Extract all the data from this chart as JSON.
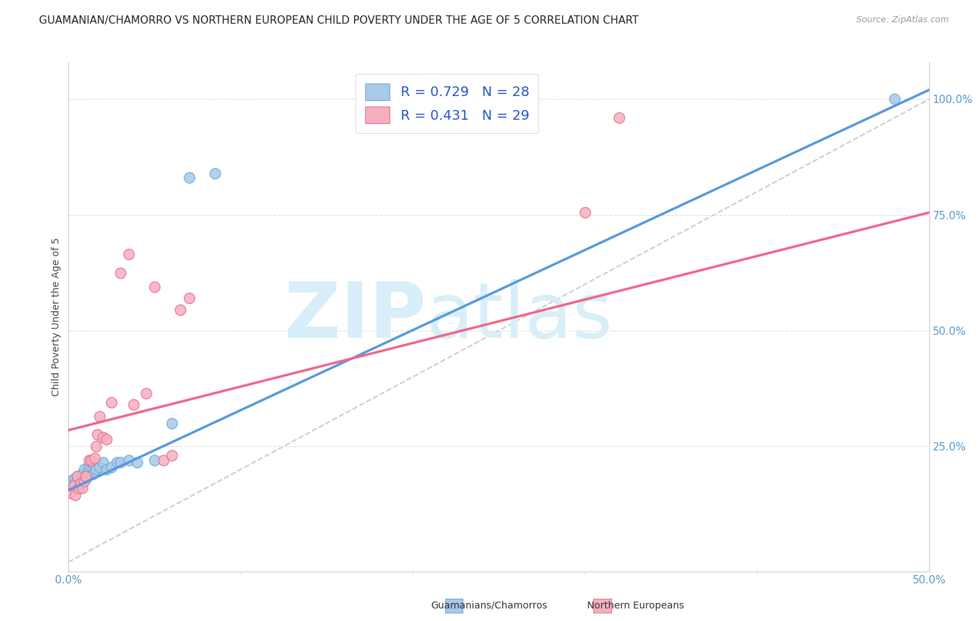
{
  "title": "GUAMANIAN/CHAMORRO VS NORTHERN EUROPEAN CHILD POVERTY UNDER THE AGE OF 5 CORRELATION CHART",
  "source": "Source: ZipAtlas.com",
  "ylabel": "Child Poverty Under the Age of 5",
  "xlim": [
    0.0,
    0.5
  ],
  "ylim": [
    -0.02,
    1.08
  ],
  "xticks": [
    0.0,
    0.1,
    0.2,
    0.3,
    0.4,
    0.5
  ],
  "yticks": [
    0.25,
    0.5,
    0.75,
    1.0
  ],
  "xticklabels_show": [
    "0.0%",
    "50.0%"
  ],
  "xticklabels_pos": [
    0.0,
    0.5
  ],
  "yticklabels": [
    "25.0%",
    "50.0%",
    "75.0%",
    "100.0%"
  ],
  "blue_color": "#aac8e8",
  "pink_color": "#f5b0c0",
  "blue_edge_color": "#6aaad8",
  "pink_edge_color": "#e87090",
  "blue_line_color": "#5599dd",
  "pink_line_color": "#ee6688",
  "blue_label": "Guamanians/Chamorros",
  "pink_label": "Northern Europeans",
  "blue_R": "0.729",
  "blue_N": "28",
  "pink_R": "0.431",
  "pink_N": "29",
  "legend_text_color": "#2255cc",
  "watermark_zip": "ZIP",
  "watermark_atlas": "atlas",
  "watermark_color": "#d8eef8",
  "blue_scatter_x": [
    0.001,
    0.003,
    0.004,
    0.005,
    0.006,
    0.007,
    0.008,
    0.009,
    0.01,
    0.011,
    0.012,
    0.013,
    0.014,
    0.015,
    0.016,
    0.018,
    0.02,
    0.022,
    0.025,
    0.028,
    0.03,
    0.035,
    0.04,
    0.05,
    0.06,
    0.07,
    0.085,
    0.48
  ],
  "blue_scatter_y": [
    0.175,
    0.18,
    0.17,
    0.185,
    0.165,
    0.175,
    0.19,
    0.2,
    0.18,
    0.195,
    0.21,
    0.215,
    0.19,
    0.195,
    0.2,
    0.205,
    0.215,
    0.2,
    0.205,
    0.215,
    0.215,
    0.22,
    0.215,
    0.22,
    0.3,
    0.83,
    0.84,
    1.0
  ],
  "pink_scatter_x": [
    0.001,
    0.003,
    0.004,
    0.005,
    0.006,
    0.007,
    0.008,
    0.009,
    0.01,
    0.012,
    0.013,
    0.015,
    0.016,
    0.017,
    0.018,
    0.02,
    0.022,
    0.025,
    0.03,
    0.035,
    0.038,
    0.045,
    0.05,
    0.055,
    0.06,
    0.065,
    0.07,
    0.3,
    0.32
  ],
  "pink_scatter_y": [
    0.15,
    0.165,
    0.145,
    0.185,
    0.16,
    0.17,
    0.16,
    0.175,
    0.185,
    0.22,
    0.22,
    0.225,
    0.25,
    0.275,
    0.315,
    0.27,
    0.265,
    0.345,
    0.625,
    0.665,
    0.34,
    0.365,
    0.595,
    0.22,
    0.23,
    0.545,
    0.57,
    0.755,
    0.96
  ],
  "blue_line_x0": 0.0,
  "blue_line_x1": 0.5,
  "blue_line_y0": 0.155,
  "blue_line_y1": 1.02,
  "pink_line_x0": 0.0,
  "pink_line_x1": 0.5,
  "pink_line_y0": 0.285,
  "pink_line_y1": 0.755,
  "ref_line_x0": 0.0,
  "ref_line_x1": 0.5,
  "ref_line_y0": 0.0,
  "ref_line_y1": 1.0,
  "background_color": "#ffffff",
  "grid_color": "#dddddd",
  "axis_color": "#cccccc",
  "tick_color": "#5599cc",
  "title_fontsize": 11,
  "axis_label_fontsize": 10,
  "tick_fontsize": 11,
  "marker_size": 120,
  "marker_lw": 1.0
}
